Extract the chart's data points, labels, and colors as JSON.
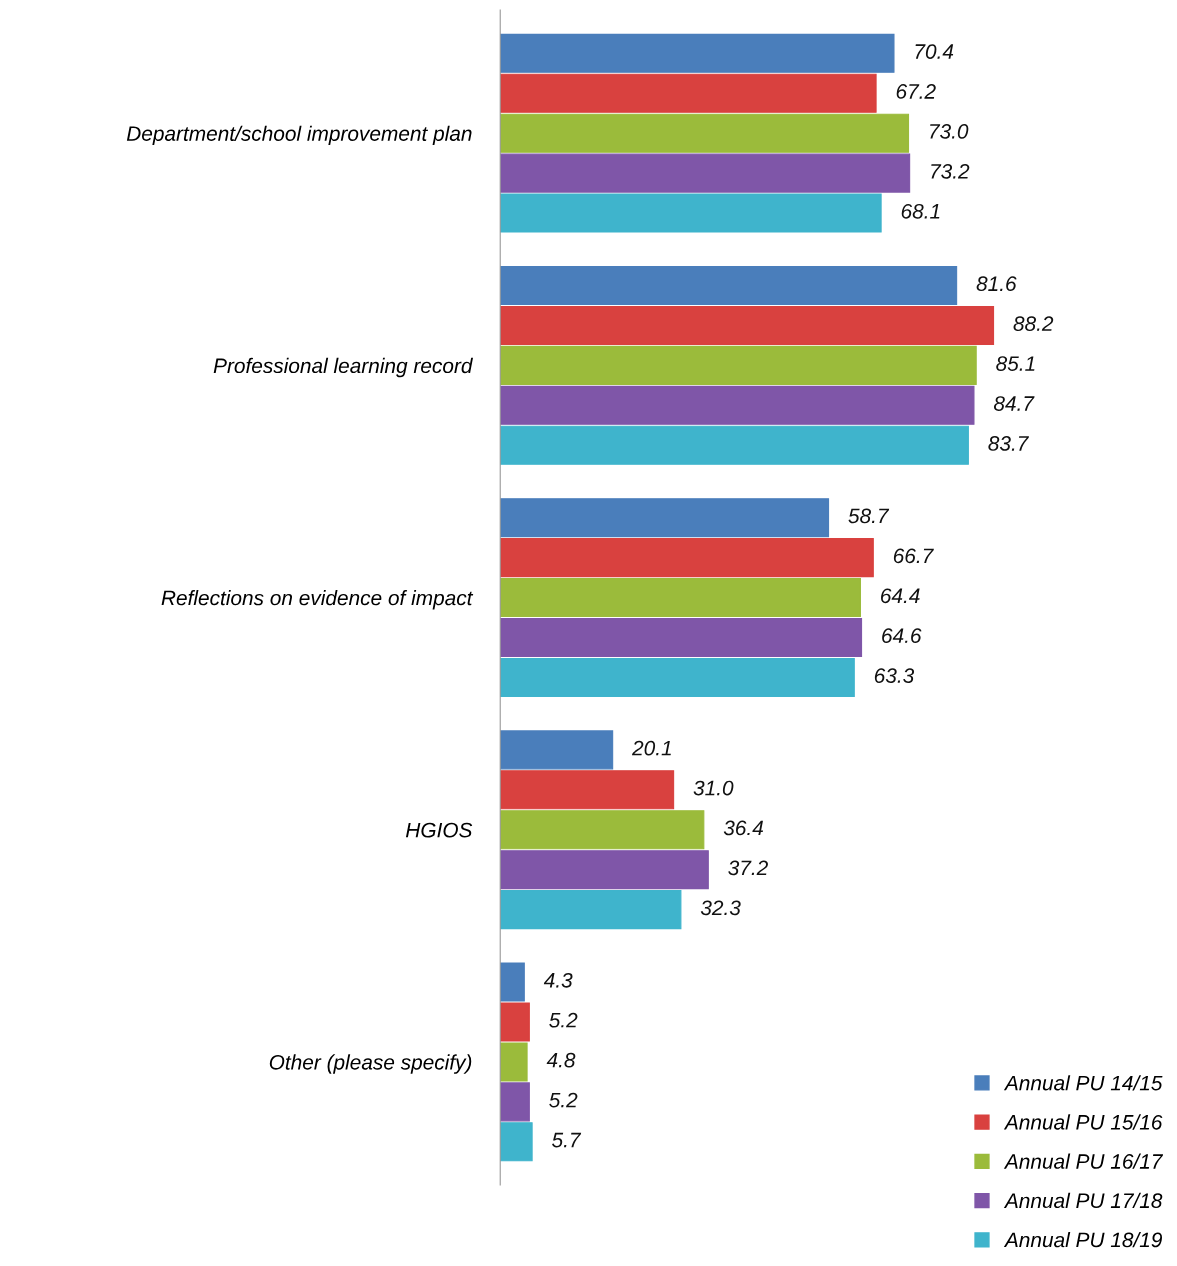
{
  "chart_data": {
    "type": "bar",
    "orientation": "horizontal",
    "categories": [
      "Department/school improvement plan",
      "Professional learning record",
      "Reflections on evidence of impact",
      "HGIOS",
      "Other (please specify)"
    ],
    "series": [
      {
        "name": "Annual PU 14/15",
        "color": "#4a7ebb",
        "values": [
          70.4,
          81.6,
          58.7,
          20.1,
          4.3
        ],
        "value_labels": [
          "70.4",
          "81.6",
          "58.7",
          "20.1",
          "4.3"
        ]
      },
      {
        "name": "Annual PU 15/16",
        "color": "#d9413f",
        "values": [
          67.2,
          88.2,
          66.7,
          31.0,
          5.2
        ],
        "value_labels": [
          "67.2",
          "88.2",
          "66.7",
          "31.0",
          "5.2"
        ]
      },
      {
        "name": "Annual PU 16/17",
        "color": "#9bbb3b",
        "values": [
          73.0,
          85.1,
          64.4,
          36.4,
          4.8
        ],
        "value_labels": [
          "73.0",
          "85.1",
          "64.4",
          "36.4",
          "4.8"
        ]
      },
      {
        "name": "Annual PU 17/18",
        "color": "#7f56a8",
        "values": [
          73.2,
          84.7,
          64.6,
          37.2,
          5.2
        ],
        "value_labels": [
          "73.2",
          "84.7",
          "64.6",
          "37.2",
          "5.2"
        ]
      },
      {
        "name": "Annual PU 18/19",
        "color": "#3fb4cc",
        "values": [
          68.1,
          83.7,
          63.3,
          32.3,
          5.7
        ],
        "value_labels": [
          "68.1",
          "83.7",
          "63.3",
          "32.3",
          "5.7"
        ]
      }
    ],
    "legend": "bottom right",
    "grid": false
  }
}
